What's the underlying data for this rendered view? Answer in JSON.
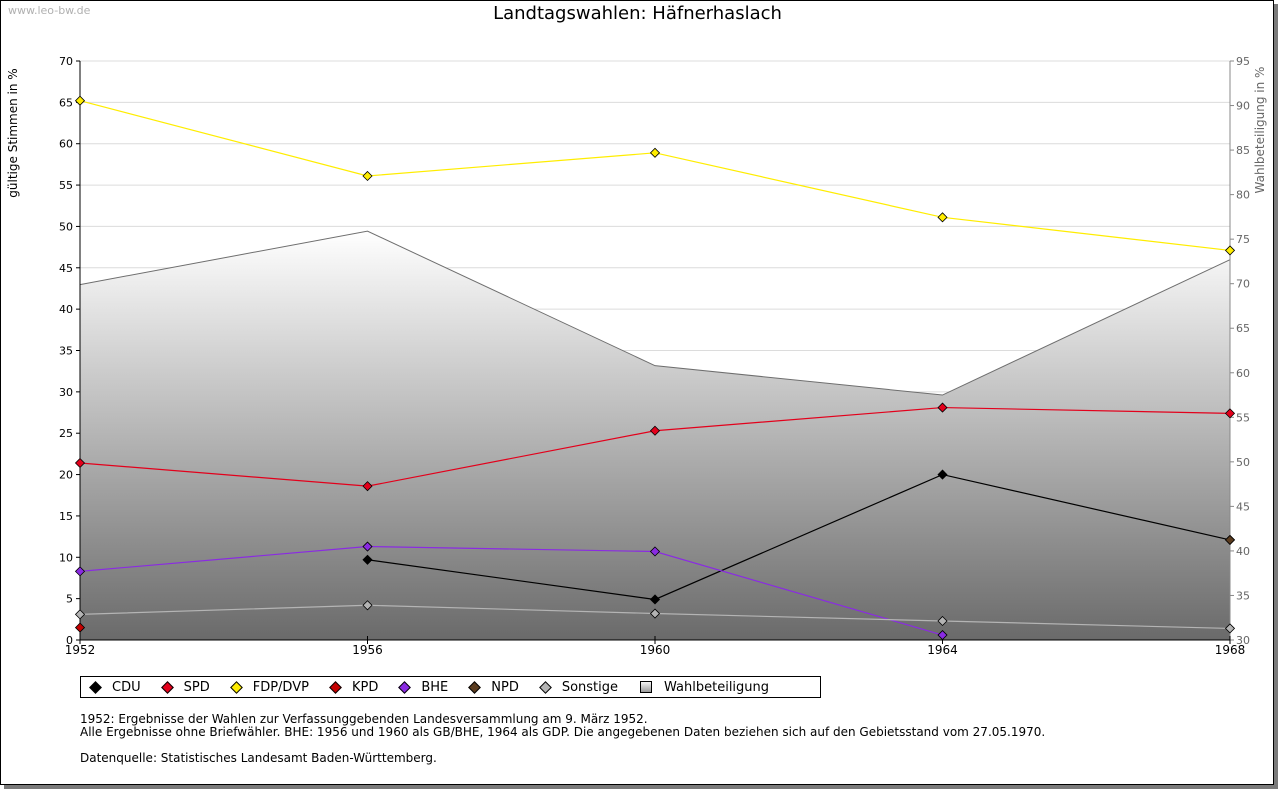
{
  "watermark": "www.leo-bw.de",
  "chart_data": {
    "type": "line",
    "title": "Landtagswahlen: Häfnerhaslach",
    "ylabel": "gültige Stimmen in %",
    "ylabel_right": "Wahlbeteiligung in %",
    "xlabel": "",
    "x": [
      1952,
      1956,
      1960,
      1964,
      1968
    ],
    "ylim": [
      0,
      70
    ],
    "ylim_right": [
      30,
      95
    ],
    "yticks": [
      0,
      5,
      10,
      15,
      20,
      25,
      30,
      35,
      40,
      45,
      50,
      55,
      60,
      65,
      70
    ],
    "yticks_right": [
      30,
      35,
      40,
      45,
      50,
      55,
      60,
      65,
      70,
      75,
      80,
      85,
      90,
      95
    ],
    "grid": true,
    "legend_position": "bottom",
    "area_series": {
      "name": "Wahlbeteiligung",
      "axis": "right",
      "x": [
        1952,
        1956,
        1960,
        1964,
        1968
      ],
      "values": [
        69.9,
        75.9,
        60.8,
        57.5,
        72.7
      ]
    },
    "series": [
      {
        "name": "CDU",
        "color": "#000000",
        "x": [
          1956,
          1960,
          1964,
          1968
        ],
        "values": [
          9.7,
          4.9,
          20.0,
          12.1
        ]
      },
      {
        "name": "SPD",
        "color": "#e3001b",
        "x": [
          1952,
          1956,
          1960,
          1964,
          1968
        ],
        "values": [
          21.4,
          18.6,
          25.3,
          28.1,
          27.4
        ]
      },
      {
        "name": "FDP/DVP",
        "color": "#ffed00",
        "x": [
          1952,
          1956,
          1960,
          1964,
          1968
        ],
        "values": [
          65.2,
          56.1,
          58.9,
          51.1,
          47.1
        ]
      },
      {
        "name": "KPD",
        "color": "#c40000",
        "x": [
          1952
        ],
        "values": [
          1.5
        ]
      },
      {
        "name": "BHE",
        "color": "#8a2be2",
        "x": [
          1952,
          1956,
          1960,
          1964
        ],
        "values": [
          8.3,
          11.3,
          10.7,
          0.6
        ]
      },
      {
        "name": "NPD",
        "color": "#5a3b1e",
        "x": [
          1968
        ],
        "values": [
          12.1
        ]
      },
      {
        "name": "Sonstige",
        "color": "#b4b4b4",
        "x": [
          1952,
          1956,
          1960,
          1964,
          1968
        ],
        "values": [
          3.1,
          4.2,
          3.2,
          2.3,
          1.4
        ]
      }
    ]
  },
  "legend": [
    {
      "label": "CDU",
      "color": "#000000"
    },
    {
      "label": "SPD",
      "color": "#e3001b"
    },
    {
      "label": "FDP/DVP",
      "color": "#ffed00"
    },
    {
      "label": "KPD",
      "color": "#c40000"
    },
    {
      "label": "BHE",
      "color": "#8a2be2"
    },
    {
      "label": "NPD",
      "color": "#5a3b1e"
    },
    {
      "label": "Sonstige",
      "color": "#b4b4b4"
    },
    {
      "label": "Wahlbeteiligung",
      "color": "#c8c8c8"
    }
  ],
  "footnotes": {
    "line1": "1952: Ergebnisse der Wahlen zur Verfassunggebenden Landesversammlung am 9. März 1952.",
    "line2": "Alle Ergebnisse ohne Briefwähler. BHE: 1956 und 1960 als GB/BHE, 1964 als GDP. Die angegebenen Daten beziehen sich auf den Gebietsstand vom 27.05.1970.",
    "source": "Datenquelle: Statistisches Landesamt Baden-Württemberg."
  }
}
